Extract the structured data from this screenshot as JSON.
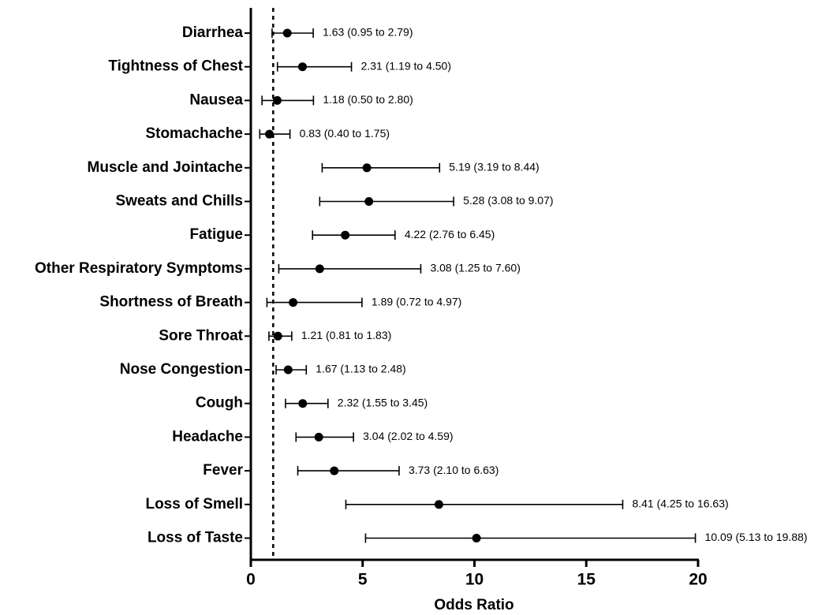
{
  "chart_data": {
    "type": "forest",
    "xlabel": "Odds Ratio",
    "categories": [
      "Diarrhea",
      "Tightness of Chest",
      "Nausea",
      "Stomachache",
      "Muscle and Jointache",
      "Sweats and Chills",
      "Fatigue",
      "Other Respiratory Symptoms",
      "Shortness of Breath",
      "Sore Throat",
      "Nose Congestion",
      "Cough",
      "Headache",
      "Fever",
      "Loss of Smell",
      "Loss of Taste"
    ],
    "values": [
      1.63,
      2.31,
      1.18,
      0.83,
      5.19,
      5.28,
      4.22,
      3.08,
      1.89,
      1.21,
      1.67,
      2.32,
      3.04,
      3.73,
      8.41,
      10.09
    ],
    "ci_lower": [
      0.95,
      1.19,
      0.5,
      0.4,
      3.19,
      3.08,
      2.76,
      1.25,
      0.72,
      0.81,
      1.13,
      1.55,
      2.02,
      2.1,
      4.25,
      5.13
    ],
    "ci_upper": [
      2.79,
      4.5,
      2.8,
      1.75,
      8.44,
      9.07,
      6.45,
      7.6,
      4.97,
      1.83,
      2.48,
      3.45,
      4.59,
      6.63,
      16.63,
      19.88
    ],
    "value_labels": [
      "1.63 (0.95 to 2.79)",
      "2.31 (1.19 to 4.50)",
      "1.18 (0.50 to 2.80)",
      "0.83 (0.40 to 1.75)",
      "5.19 (3.19 to 8.44)",
      "5.28 (3.08 to 9.07)",
      "4.22 (2.76 to 6.45)",
      "3.08 (1.25 to 7.60)",
      "1.89 (0.72 to 4.97)",
      "1.21 (0.81 to 1.83)",
      "1.67 (1.13 to 2.48)",
      "2.32 (1.55 to 3.45)",
      "3.04 (2.02 to 4.59)",
      "3.73 (2.10 to 6.63)",
      "8.41 (4.25 to 16.63)",
      "10.09 (5.13 to 19.88)"
    ],
    "color": "#000000",
    "reference_line": 1,
    "xlim": [
      0,
      20
    ],
    "xticks": [
      0,
      5,
      10,
      15,
      20
    ]
  }
}
